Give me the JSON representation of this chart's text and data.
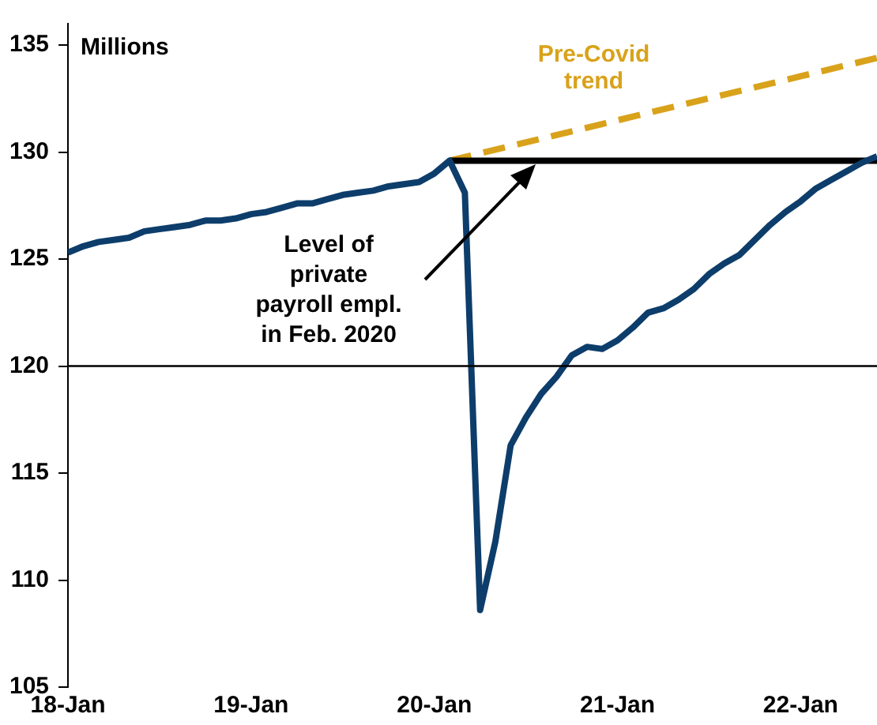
{
  "chart_data": {
    "type": "line",
    "ylabel": "Millions",
    "x": [
      "2018-01",
      "2018-02",
      "2018-03",
      "2018-04",
      "2018-05",
      "2018-06",
      "2018-07",
      "2018-08",
      "2018-09",
      "2018-10",
      "2018-11",
      "2018-12",
      "2019-01",
      "2019-02",
      "2019-03",
      "2019-04",
      "2019-05",
      "2019-06",
      "2019-07",
      "2019-08",
      "2019-09",
      "2019-10",
      "2019-11",
      "2019-12",
      "2020-01",
      "2020-02",
      "2020-03",
      "2020-04",
      "2020-05",
      "2020-06",
      "2020-07",
      "2020-08",
      "2020-09",
      "2020-10",
      "2020-11",
      "2020-12",
      "2021-01",
      "2021-02",
      "2021-03",
      "2021-04",
      "2021-05",
      "2021-06",
      "2021-07",
      "2021-08",
      "2021-09",
      "2021-10",
      "2021-11",
      "2021-12",
      "2022-01",
      "2022-02",
      "2022-03",
      "2022-04",
      "2022-05",
      "2022-06"
    ],
    "series": [
      {
        "color": "#0d3d6b",
        "values": [
          125.3,
          125.6,
          125.8,
          125.9,
          126.0,
          126.3,
          126.4,
          126.5,
          126.6,
          126.8,
          126.8,
          126.9,
          127.1,
          127.2,
          127.4,
          127.6,
          127.6,
          127.8,
          128.0,
          128.1,
          128.2,
          128.4,
          128.5,
          128.6,
          129.0,
          129.6,
          128.1,
          108.6,
          111.8,
          116.3,
          117.6,
          118.7,
          119.5,
          120.5,
          120.9,
          120.8,
          121.2,
          121.8,
          122.5,
          122.7,
          123.1,
          123.6,
          124.3,
          124.8,
          125.2,
          125.9,
          126.6,
          127.2,
          127.7,
          128.3,
          128.7,
          129.1,
          129.5,
          129.8
        ]
      },
      {
        "color": "#000000",
        "x": [
          "2020-02",
          "2022-06"
        ],
        "values": [
          129.6,
          129.6
        ]
      },
      {
        "name": "Pre-Covid trend",
        "color": "#d9a21b",
        "line_style": "dashed",
        "x": [
          "2020-02",
          "2022-06"
        ],
        "values": [
          129.6,
          134.4
        ]
      }
    ],
    "xlim": [
      "2018-01",
      "2022-06"
    ],
    "xticks": [
      {
        "value": "2018-01",
        "label": "18-Jan"
      },
      {
        "value": "2019-01",
        "label": "19-Jan"
      },
      {
        "value": "2020-01",
        "label": "20-Jan"
      },
      {
        "value": "2021-01",
        "label": "21-Jan"
      },
      {
        "value": "2022-01",
        "label": "22-Jan"
      }
    ],
    "ylim": [
      105,
      136
    ],
    "yticks": [
      105,
      110,
      115,
      120,
      125,
      130,
      135
    ],
    "ref_lines": [
      {
        "axis": "y",
        "value": 120,
        "color": "#000000"
      }
    ],
    "annotations": [
      "Level of private payroll empl. in Feb. 2020"
    ],
    "grid": false,
    "legend": false,
    "marker": "none"
  }
}
